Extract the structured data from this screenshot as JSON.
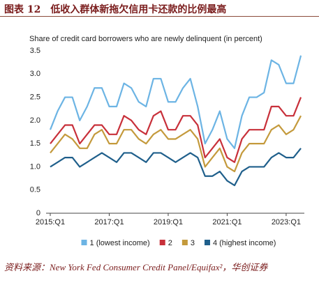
{
  "header": "图表 12　低收入群体新拖欠信用卡还款的比例最高",
  "source": "资料来源：New York Fed Consumer Credit Panel/Equifax²，华创证券",
  "chart_data": {
    "type": "line",
    "title": "Share of credit card borrowers who are newly delinquent (in percent)",
    "categories": [
      "2015:Q1",
      null,
      null,
      null,
      null,
      null,
      null,
      null,
      "2017:Q1",
      null,
      null,
      null,
      null,
      null,
      null,
      null,
      "2019:Q1",
      null,
      null,
      null,
      null,
      null,
      null,
      null,
      "2021:Q1",
      null,
      null,
      null,
      null,
      null,
      null,
      null,
      "2023:Q1",
      null,
      null
    ],
    "series": [
      {
        "name": "1 (lowest income)",
        "color": "#6cb4e4",
        "values": [
          1.8,
          2.2,
          2.5,
          2.5,
          2.0,
          2.3,
          2.7,
          2.7,
          2.3,
          2.3,
          2.8,
          2.7,
          2.4,
          2.3,
          2.9,
          2.9,
          2.4,
          2.4,
          2.7,
          2.9,
          2.3,
          1.5,
          1.8,
          2.2,
          1.6,
          1.4,
          2.1,
          2.5,
          2.5,
          2.6,
          3.3,
          3.2,
          2.8,
          2.8,
          3.4
        ]
      },
      {
        "name": "2",
        "color": "#c8303a",
        "values": [
          1.5,
          1.7,
          1.9,
          1.9,
          1.5,
          1.7,
          1.9,
          1.9,
          1.7,
          1.7,
          2.1,
          2.0,
          1.8,
          1.7,
          2.1,
          2.2,
          1.8,
          1.8,
          2.1,
          2.1,
          1.9,
          1.2,
          1.4,
          1.6,
          1.2,
          1.1,
          1.6,
          1.8,
          1.8,
          1.8,
          2.3,
          2.3,
          2.1,
          2.1,
          2.5
        ]
      },
      {
        "name": "3",
        "color": "#c49a3c",
        "values": [
          1.3,
          1.5,
          1.7,
          1.6,
          1.4,
          1.4,
          1.7,
          1.8,
          1.5,
          1.5,
          1.8,
          1.8,
          1.6,
          1.5,
          1.7,
          1.8,
          1.6,
          1.6,
          1.7,
          1.8,
          1.6,
          1.0,
          1.2,
          1.4,
          1.0,
          0.9,
          1.3,
          1.5,
          1.5,
          1.5,
          1.8,
          1.9,
          1.7,
          1.8,
          2.1
        ]
      },
      {
        "name": "4 (highest income)",
        "color": "#1f5f8b",
        "values": [
          1.0,
          1.1,
          1.2,
          1.2,
          1.0,
          1.1,
          1.2,
          1.3,
          1.2,
          1.1,
          1.3,
          1.3,
          1.2,
          1.1,
          1.3,
          1.3,
          1.2,
          1.1,
          1.2,
          1.3,
          1.2,
          0.8,
          0.8,
          0.9,
          0.7,
          0.6,
          0.9,
          1.0,
          1.0,
          1.0,
          1.2,
          1.3,
          1.2,
          1.2,
          1.4
        ]
      }
    ],
    "ylim": [
      0,
      3.5
    ],
    "yticks": [
      0,
      0.5,
      {
        "value": 1,
        "label": "1.0"
      },
      1.5,
      {
        "value": 2,
        "label": "2.0"
      },
      2.5,
      {
        "value": 3,
        "label": "3.0"
      },
      3.5
    ],
    "grid": false
  }
}
